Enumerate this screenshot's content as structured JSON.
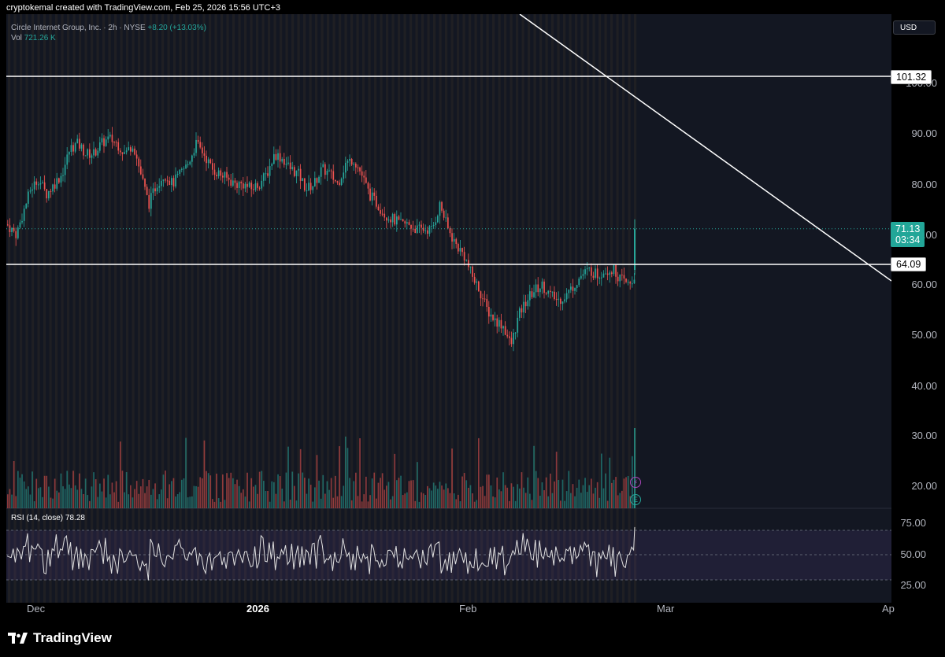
{
  "caption": "cryptokemal created with TradingView.com, Feb 25, 2026 15:56 UTC+3",
  "legend": {
    "symbol": "Circle Internet Group, Inc. · 2h · NYSE",
    "change": "+8.20 (+13.03%)",
    "vol_label": "Vol",
    "vol_value": "721.26 K"
  },
  "currency_button": "USD",
  "price_axis": [
    "100.00",
    "90.00",
    "80.00",
    "70.00",
    "60.00",
    "50.00",
    "40.00",
    "30.00",
    "20.00"
  ],
  "price_tags": {
    "resistance": "101.32",
    "current_price": "71.13",
    "countdown": "03:34",
    "support": "64.09"
  },
  "rsi": {
    "label": "RSI (14, close)",
    "value": "78.28",
    "axis": [
      "75.00",
      "50.00",
      "25.00"
    ]
  },
  "time_axis": {
    "dec": "Dec",
    "y2026": "2026",
    "feb": "Feb",
    "mar": "Mar",
    "apr": "Ap"
  },
  "events": {
    "flash": "⚡",
    "earnings": "E"
  },
  "brand": "TradingView",
  "colors": {
    "up": "#26a69a",
    "down": "#ef5350",
    "background": "#131722",
    "rsi_line": "#e0e0e0",
    "rsi_band": "#7e57c2"
  },
  "chart_data": {
    "type": "candlestick",
    "xlabel": "",
    "ylabel": "",
    "ylim": [
      15,
      107
    ],
    "horizontal_levels": [
      101.32,
      64.09
    ],
    "last_price": 71.13,
    "price_path": [
      [
        0,
        72
      ],
      [
        12,
        70
      ],
      [
        20,
        74
      ],
      [
        30,
        79
      ],
      [
        40,
        81
      ],
      [
        50,
        78
      ],
      [
        60,
        80
      ],
      [
        70,
        82
      ],
      [
        80,
        87
      ],
      [
        90,
        88
      ],
      [
        100,
        86
      ],
      [
        110,
        86
      ],
      [
        120,
        88
      ],
      [
        130,
        89
      ],
      [
        140,
        88
      ],
      [
        150,
        86
      ],
      [
        160,
        88
      ],
      [
        170,
        82
      ],
      [
        180,
        76
      ],
      [
        190,
        80
      ],
      [
        200,
        82
      ],
      [
        210,
        80
      ],
      [
        220,
        82
      ],
      [
        230,
        84
      ],
      [
        240,
        88
      ],
      [
        250,
        86
      ],
      [
        260,
        83
      ],
      [
        270,
        82
      ],
      [
        280,
        81
      ],
      [
        290,
        80
      ],
      [
        300,
        80
      ],
      [
        310,
        79
      ],
      [
        320,
        80
      ],
      [
        330,
        82
      ],
      [
        340,
        86
      ],
      [
        350,
        85
      ],
      [
        360,
        83
      ],
      [
        370,
        82
      ],
      [
        380,
        79
      ],
      [
        390,
        80
      ],
      [
        400,
        83
      ],
      [
        410,
        82
      ],
      [
        420,
        80
      ],
      [
        430,
        84
      ],
      [
        440,
        85
      ],
      [
        450,
        82
      ],
      [
        460,
        78
      ],
      [
        470,
        76
      ],
      [
        480,
        74
      ],
      [
        490,
        73
      ],
      [
        500,
        72
      ],
      [
        510,
        72
      ],
      [
        520,
        71
      ],
      [
        530,
        71
      ],
      [
        540,
        71
      ],
      [
        550,
        76
      ],
      [
        560,
        71
      ],
      [
        570,
        68
      ],
      [
        580,
        66
      ],
      [
        590,
        62
      ],
      [
        600,
        59
      ],
      [
        610,
        55
      ],
      [
        620,
        53
      ],
      [
        630,
        52
      ],
      [
        640,
        48
      ],
      [
        650,
        54
      ],
      [
        660,
        57
      ],
      [
        670,
        59
      ],
      [
        680,
        60
      ],
      [
        690,
        58
      ],
      [
        700,
        57
      ],
      [
        710,
        58
      ],
      [
        720,
        60
      ],
      [
        730,
        62
      ],
      [
        740,
        63
      ],
      [
        750,
        62
      ],
      [
        760,
        63
      ],
      [
        770,
        63
      ],
      [
        780,
        61
      ],
      [
        790,
        60
      ],
      [
        800,
        62
      ],
      [
        806,
        64
      ],
      [
        810,
        71
      ]
    ]
  }
}
